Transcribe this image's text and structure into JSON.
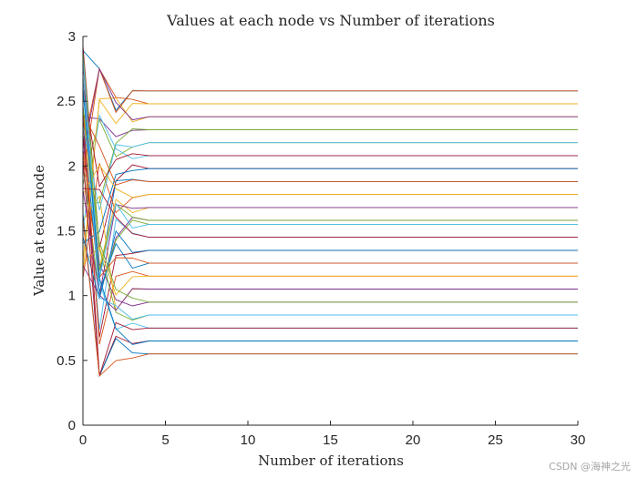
{
  "watermark": "CSDN @海神之光",
  "chart_data": {
    "type": "line",
    "title": "Values at each node vs Number of iterations",
    "xlabel": "Number of iterations",
    "ylabel": "Value at each node",
    "xlim": [
      0,
      30
    ],
    "ylim": [
      0,
      3
    ],
    "xticks": [
      0,
      5,
      10,
      15,
      20,
      25,
      30
    ],
    "yticks": [
      0,
      0.5,
      1,
      1.5,
      2,
      2.5,
      3
    ],
    "grid": false,
    "legend": "none",
    "colors": [
      "#0072BD",
      "#D95319",
      "#EDB120",
      "#7E2F8E",
      "#77AC30",
      "#4DBEEE",
      "#A2142F"
    ],
    "x": [
      0,
      1,
      2,
      3,
      4,
      5,
      6,
      7,
      8,
      9,
      10,
      11,
      12,
      13,
      14,
      15,
      16,
      17,
      18,
      19,
      20,
      21,
      22,
      23,
      24,
      25,
      26,
      27,
      28,
      29,
      30
    ],
    "final_values": [
      2.58,
      2.48,
      2.38,
      2.28,
      2.18,
      2.08,
      1.98,
      1.88,
      1.78,
      1.68,
      1.58,
      1.55,
      1.45,
      1.35,
      1.25,
      1.15,
      1.05,
      0.95,
      0.85,
      0.75,
      0.65,
      0.55
    ]
  }
}
